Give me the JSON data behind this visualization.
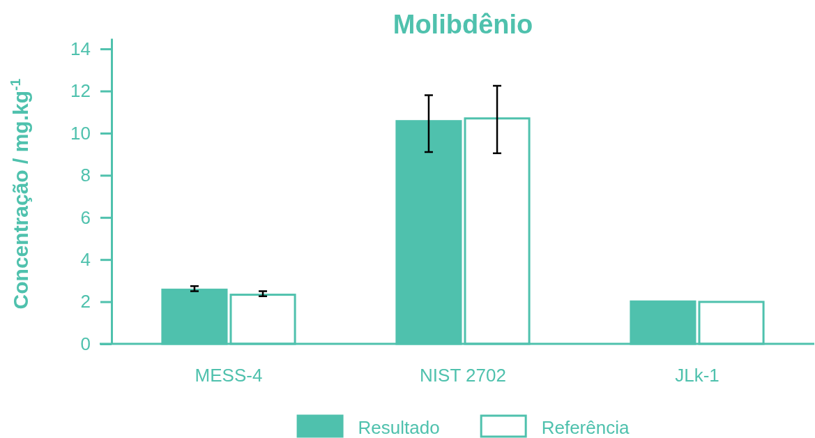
{
  "chart_data": {
    "type": "bar",
    "title": "Molibdênio",
    "ylabel": "Concentração / mg.kg$^{-1}$",
    "categories": [
      "MESS-4",
      "NIST 2702",
      "JLk-1"
    ],
    "series": [
      {
        "name": "Resultado",
        "color": "#4fc1ad",
        "values": [
          2.62,
          10.62,
          2.06
        ],
        "errors": [
          0.12,
          [
            9.1,
            11.8
          ],
          null
        ]
      },
      {
        "name": "Referência",
        "color": "#ffffff",
        "values": [
          2.38,
          10.75,
          2.04
        ],
        "errors": [
          0.12,
          [
            9.05,
            12.25
          ],
          null
        ]
      }
    ],
    "ylim": [
      0,
      14.5
    ],
    "yticks": [
      0,
      2,
      4,
      6,
      8,
      10,
      12,
      14
    ],
    "grid": false,
    "legend": "bottom"
  }
}
